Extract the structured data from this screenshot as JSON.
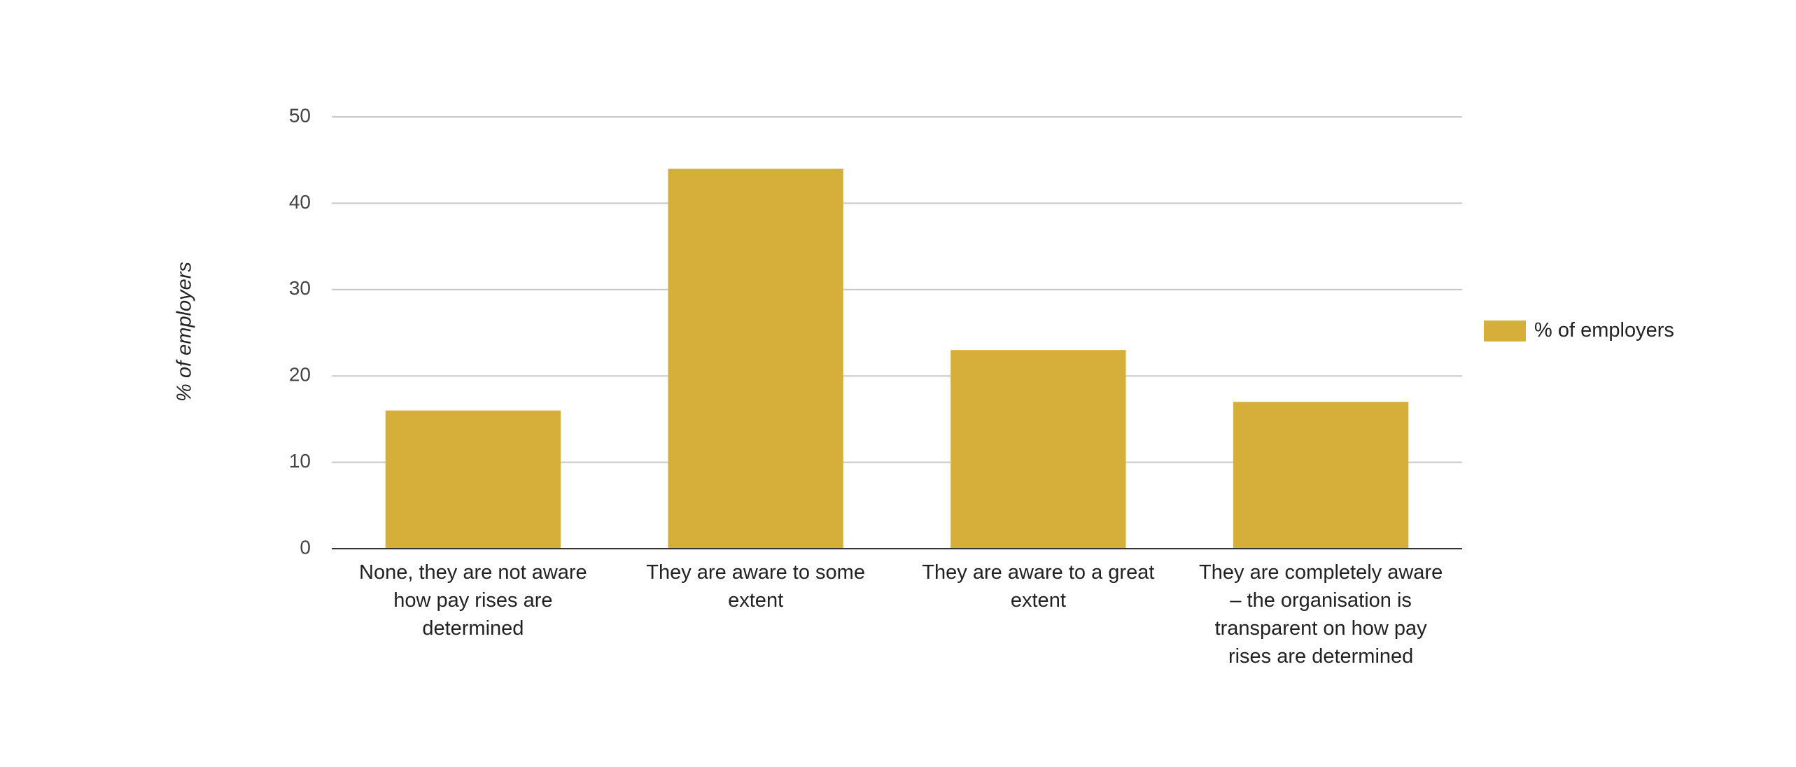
{
  "chart_data": {
    "type": "bar",
    "y_label": "% of employers",
    "categories": [
      "None, they are not aware how pay rises are determined",
      "They are aware to some extent",
      "They are aware to a great extent",
      "They are completely aware – the organisation is transparent on how pay rises are determined"
    ],
    "series": [
      {
        "name": "% of employers",
        "color": "#d6af3b",
        "values": [
          16,
          44,
          23,
          17
        ]
      }
    ],
    "ylim": [
      0,
      50
    ],
    "yticks": [
      0,
      10,
      20,
      30,
      40,
      50
    ],
    "grid": true,
    "legend": "right"
  }
}
